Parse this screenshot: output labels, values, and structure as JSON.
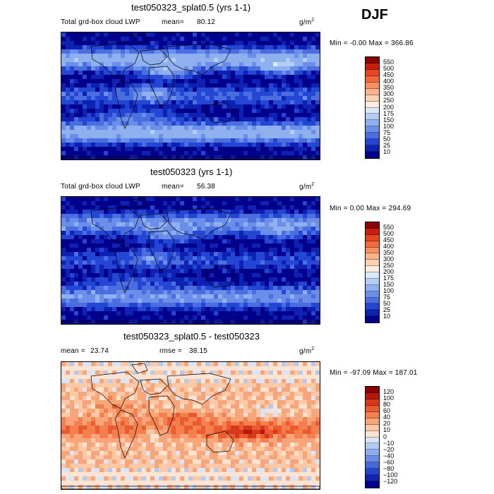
{
  "season": "DJF",
  "panels": [
    {
      "title": "test050323_splat0.5 (yrs 1-1)",
      "variable": "Total grd-box cloud LWP",
      "mean_label": "mean=",
      "mean": "80.12",
      "units_base": "g/m",
      "units_exp": "2",
      "minmax": "Min =   -0.00 Max = 366.86",
      "scale": "lwp"
    },
    {
      "title": "test050323 (yrs 1-1)",
      "variable": "Total grd-box cloud LWP",
      "mean_label": "mean=",
      "mean": "56.38",
      "units_base": "g/m",
      "units_exp": "2",
      "minmax": "Min =    0.00 Max = 294.69",
      "scale": "lwp"
    },
    {
      "title": "test050323_splat0.5 - test050323",
      "mean_label": "mean =",
      "mean": "23.74",
      "rmse_label": "rmse =",
      "rmse": "38.15",
      "units_base": "g/m",
      "units_exp": "2",
      "minmax": "Min = -97.09 Max = 187.01",
      "scale": "diff"
    }
  ],
  "colorbars": {
    "lwp": {
      "levels": [
        "550",
        "500",
        "450",
        "400",
        "350",
        "300",
        "250",
        "200",
        "175",
        "150",
        "100",
        "75",
        "50",
        "25",
        "10"
      ],
      "colors": [
        "#8b0000",
        "#c81e0a",
        "#e8461e",
        "#f26a3c",
        "#f7905f",
        "#fab38a",
        "#fcd2b4",
        "#fdeee1",
        "#d9e8fb",
        "#b3cdf5",
        "#8fb0ef",
        "#6b8fe8",
        "#4a6ee0",
        "#2446d4",
        "#0d22b3",
        "#00008a"
      ]
    },
    "diff": {
      "levels": [
        "120",
        "100",
        "80",
        "60",
        "40",
        "20",
        "10",
        "0",
        "−10",
        "−20",
        "−40",
        "−60",
        "−80",
        "−100",
        "−120"
      ],
      "colors": [
        "#8b0000",
        "#b8180a",
        "#d8381a",
        "#ec5a30",
        "#f5804f",
        "#f9a57a",
        "#fcc8a6",
        "#fde4d2",
        "#d7e6fa",
        "#b2cbf3",
        "#8daded",
        "#6a8ce6",
        "#4869de",
        "#2545cc",
        "#1024b0",
        "#00008b"
      ]
    }
  }
}
